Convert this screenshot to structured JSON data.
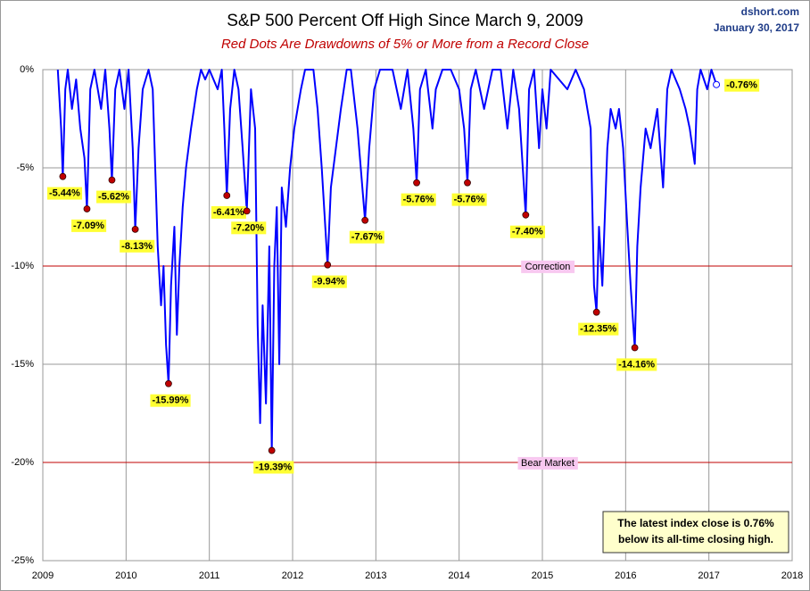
{
  "chart_data": {
    "type": "line",
    "title": "S&P 500 Percent Off High Since March 9, 2009",
    "subtitle": "Red Dots Are Drawdowns of 5% or More from a Record Close",
    "source": "dshort.com",
    "date": "January 30, 2017",
    "color": "#0000ff",
    "x": [
      2009.18,
      2009.22,
      2009.24,
      2009.27,
      2009.3,
      2009.35,
      2009.4,
      2009.45,
      2009.5,
      2009.53,
      2009.57,
      2009.62,
      2009.7,
      2009.75,
      2009.8,
      2009.83,
      2009.87,
      2009.92,
      2009.98,
      2010.03,
      2010.08,
      2010.11,
      2010.15,
      2010.2,
      2010.27,
      2010.32,
      2010.35,
      2010.38,
      2010.42,
      2010.45,
      2010.48,
      2010.51,
      2010.54,
      2010.58,
      2010.61,
      2010.64,
      2010.68,
      2010.72,
      2010.78,
      2010.85,
      2010.9,
      2010.95,
      2011.0,
      2011.1,
      2011.15,
      2011.18,
      2011.21,
      2011.25,
      2011.3,
      2011.35,
      2011.4,
      2011.45,
      2011.5,
      2011.55,
      2011.58,
      2011.61,
      2011.64,
      2011.68,
      2011.72,
      2011.75,
      2011.78,
      2011.81,
      2011.84,
      2011.87,
      2011.92,
      2011.97,
      2012.02,
      2012.1,
      2012.15,
      2012.25,
      2012.3,
      2012.35,
      2012.42,
      2012.46,
      2012.52,
      2012.58,
      2012.65,
      2012.7,
      2012.78,
      2012.87,
      2012.92,
      2012.98,
      2013.05,
      2013.2,
      2013.3,
      2013.38,
      2013.45,
      2013.49,
      2013.53,
      2013.6,
      2013.68,
      2013.72,
      2013.8,
      2013.9,
      2014.0,
      2014.06,
      2014.1,
      2014.14,
      2014.2,
      2014.3,
      2014.4,
      2014.5,
      2014.58,
      2014.65,
      2014.72,
      2014.8,
      2014.84,
      2014.9,
      2014.96,
      2015.0,
      2015.05,
      2015.1,
      2015.3,
      2015.4,
      2015.5,
      2015.58,
      2015.62,
      2015.65,
      2015.68,
      2015.72,
      2015.78,
      2015.82,
      2015.88,
      2015.92,
      2015.97,
      2016.02,
      2016.06,
      2016.11,
      2016.14,
      2016.18,
      2016.24,
      2016.3,
      2016.38,
      2016.45,
      2016.5,
      2016.55,
      2016.65,
      2016.72,
      2016.77,
      2016.83,
      2016.86,
      2016.9,
      2016.98,
      2017.03,
      2017.09
    ],
    "values": [
      0,
      -3,
      -5.44,
      -1,
      0,
      -2,
      -0.5,
      -3,
      -4.5,
      -7.09,
      -1,
      0,
      -2,
      0,
      -3,
      -5.62,
      -1,
      0,
      -2,
      0,
      -4,
      -8.13,
      -4,
      -1,
      0,
      -1,
      -5,
      -9,
      -12,
      -10,
      -14,
      -15.99,
      -11,
      -8,
      -13.5,
      -10,
      -7,
      -5,
      -3,
      -1,
      0,
      -0.5,
      0,
      -1,
      0,
      -3,
      -6.41,
      -2,
      0,
      -1,
      -4,
      -7.2,
      -1,
      -3,
      -13,
      -18,
      -12,
      -17,
      -9,
      -19.39,
      -10,
      -7,
      -15,
      -6,
      -8,
      -5,
      -3,
      -1,
      0,
      0,
      -2,
      -5,
      -9.94,
      -6,
      -4,
      -2,
      0,
      0,
      -3,
      -7.67,
      -4,
      -1,
      0,
      0,
      -2,
      0,
      -3,
      -5.76,
      -1,
      0,
      -3,
      -1,
      0,
      0,
      -1,
      -3,
      -5.76,
      -1,
      0,
      -2,
      0,
      0,
      -3,
      0,
      -2,
      -7.4,
      -1,
      0,
      -4,
      -1,
      -3,
      0,
      -1,
      0,
      -1,
      -3,
      -11,
      -12.35,
      -8,
      -11,
      -4,
      -2,
      -3,
      -2,
      -4,
      -8,
      -11,
      -14.16,
      -9,
      -6,
      -3,
      -4,
      -2,
      -6,
      -1,
      0,
      -1,
      -2,
      -3,
      -4.8,
      -1,
      0,
      -1,
      0,
      -0.76
    ],
    "drawdowns": {
      "color": "#c00000",
      "x": [
        2009.24,
        2009.53,
        2009.83,
        2010.11,
        2010.51,
        2011.21,
        2011.45,
        2011.75,
        2012.42,
        2012.87,
        2013.49,
        2014.1,
        2014.8,
        2015.65,
        2016.11
      ],
      "values": [
        -5.44,
        -7.09,
        -5.62,
        -8.13,
        -15.99,
        -6.41,
        -7.2,
        -19.39,
        -9.94,
        -7.67,
        -5.76,
        -5.76,
        -7.4,
        -12.35,
        -14.16
      ],
      "value_labels": [
        "-5.44%",
        "-7.09%",
        "-5.62%",
        "-8.13%",
        "-15.99%",
        "-6.41%",
        "-7.20%",
        "-19.39%",
        "-9.94%",
        "-7.67%",
        "-5.76%",
        "-5.76%",
        "-7.40%",
        "-12.35%",
        "-14.16%"
      ]
    },
    "latest": {
      "x": 2017.09,
      "value": -0.76,
      "value_label": "-0.76%"
    },
    "reference_lines": [
      {
        "value": -10,
        "label": "Correction",
        "color": "#c00000"
      },
      {
        "value": -20,
        "label": "Bear Market",
        "color": "#c00000"
      }
    ],
    "annotation": [
      "The latest index close is 0.76%",
      "below its all-time closing high."
    ],
    "xlim": [
      2009,
      2018
    ],
    "xticks": [
      2009,
      2010,
      2011,
      2012,
      2013,
      2014,
      2015,
      2016,
      2017,
      2018
    ],
    "ylim": [
      -25,
      0
    ],
    "yticks": [
      {
        "value": 0,
        "label": "0%"
      },
      {
        "value": -5,
        "label": "-5%"
      },
      {
        "value": -10,
        "label": "-10%"
      },
      {
        "value": -15,
        "label": "-15%"
      },
      {
        "value": -20,
        "label": "-20%"
      },
      {
        "value": -25,
        "label": "-25%"
      }
    ],
    "grid": true
  }
}
